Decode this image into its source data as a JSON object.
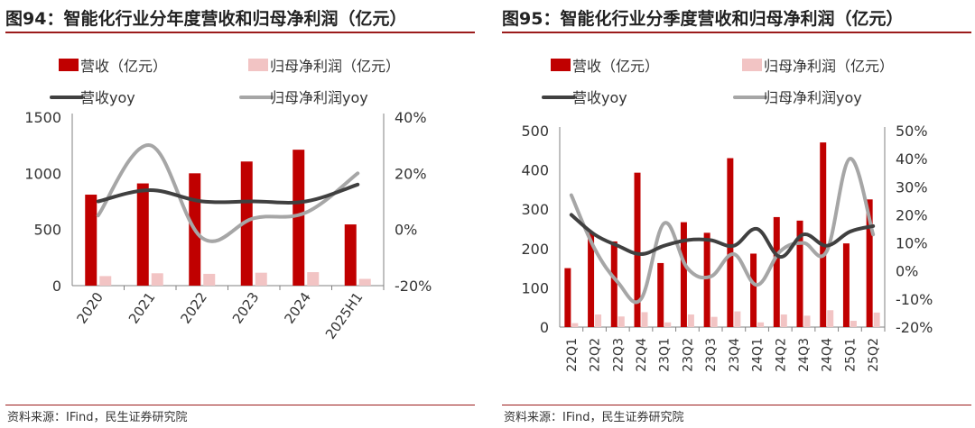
{
  "source_note": "资料来源：IFind，民生证券研究院",
  "colors": {
    "revenue_bar": "#c00000",
    "profit_bar": "#f2c4c4",
    "revenue_yoy_line": "#404040",
    "profit_yoy_line": "#a6a6a6",
    "title_rule": "#9b1b1b"
  },
  "chart_data": [
    {
      "id": "fig94",
      "type": "bar+line",
      "title": "图94：智能化行业分年度营收和归母净利润（亿元）",
      "categories": [
        "2020",
        "2021",
        "2022",
        "2023",
        "2024",
        "2025H1"
      ],
      "series": [
        {
          "name": "营收（亿元）",
          "kind": "bar",
          "axis": "left",
          "values": [
            810,
            910,
            1000,
            1105,
            1210,
            545
          ]
        },
        {
          "name": "归母净利润（亿元）",
          "kind": "bar",
          "axis": "left",
          "values": [
            85,
            110,
            105,
            115,
            120,
            60
          ]
        },
        {
          "name": "营收yoy",
          "kind": "line",
          "axis": "right",
          "values": [
            0.1,
            0.14,
            0.1,
            0.1,
            0.1,
            0.16
          ]
        },
        {
          "name": "归母净利润yoy",
          "kind": "line",
          "axis": "right",
          "values": [
            0.05,
            0.3,
            -0.03,
            0.04,
            0.06,
            0.2
          ]
        }
      ],
      "yleft": {
        "min": 0,
        "max": 1500,
        "ticks": [
          0,
          500,
          1000,
          1500
        ],
        "tick_labels": [
          "0",
          "500",
          "1000",
          "1500"
        ]
      },
      "yright": {
        "min": -0.2,
        "max": 0.4,
        "ticks": [
          -0.2,
          0,
          0.2,
          0.4
        ],
        "tick_labels": [
          "-20%",
          "0%",
          "20%",
          "40%"
        ]
      },
      "legend_position": "top",
      "grid": false
    },
    {
      "id": "fig95",
      "type": "bar+line",
      "title": "图95：智能化行业分季度营收和归母净利润（亿元）",
      "categories": [
        "22Q1",
        "22Q2",
        "22Q3",
        "22Q4",
        "23Q1",
        "23Q2",
        "23Q3",
        "23Q4",
        "24Q1",
        "24Q2",
        "24Q3",
        "24Q4",
        "25Q1",
        "25Q2"
      ],
      "series": [
        {
          "name": "营收（亿元）",
          "kind": "bar",
          "axis": "left",
          "values": [
            150,
            240,
            218,
            393,
            163,
            267,
            240,
            430,
            187,
            280,
            271,
            470,
            213,
            325
          ]
        },
        {
          "name": "归母净利润（亿元）",
          "kind": "bar",
          "axis": "left",
          "values": [
            10,
            32,
            27,
            38,
            12,
            32,
            26,
            40,
            12,
            32,
            29,
            43,
            16,
            37
          ]
        },
        {
          "name": "营收yoy",
          "kind": "line",
          "axis": "right",
          "values": [
            0.2,
            0.13,
            0.09,
            0.06,
            0.09,
            0.11,
            0.11,
            0.09,
            0.15,
            0.05,
            0.13,
            0.09,
            0.14,
            0.16
          ]
        },
        {
          "name": "归母净利润yoy",
          "kind": "line",
          "axis": "right",
          "values": [
            0.27,
            0.08,
            -0.04,
            -0.1,
            0.17,
            0.01,
            -0.02,
            0.06,
            -0.05,
            0.07,
            0.1,
            0.07,
            0.4,
            0.13
          ]
        }
      ],
      "yleft": {
        "min": 0,
        "max": 500,
        "ticks": [
          0,
          100,
          200,
          300,
          400,
          500
        ],
        "tick_labels": [
          "0",
          "100",
          "200",
          "300",
          "400",
          "500"
        ]
      },
      "yright": {
        "min": -0.2,
        "max": 0.5,
        "ticks": [
          -0.2,
          -0.1,
          0,
          0.1,
          0.2,
          0.3,
          0.4,
          0.5
        ],
        "tick_labels": [
          "-20%",
          "-10%",
          "0%",
          "10%",
          "20%",
          "30%",
          "40%",
          "50%"
        ]
      },
      "legend_position": "top",
      "grid": false
    }
  ]
}
